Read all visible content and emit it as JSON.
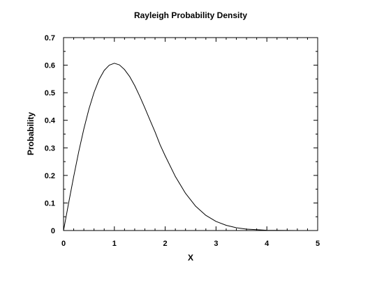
{
  "chart_data": {
    "type": "line",
    "title": "Rayleigh Probability Density",
    "xlabel": "X",
    "ylabel": "Probability",
    "xlim": [
      0,
      5
    ],
    "ylim": [
      0,
      0.7
    ],
    "x_ticks": [
      "0",
      "1",
      "2",
      "3",
      "4",
      "5"
    ],
    "y_ticks": [
      "0",
      "0.1",
      "0.2",
      "0.3",
      "0.4",
      "0.5",
      "0.6",
      "0.7"
    ],
    "grid": false,
    "series": [
      {
        "color": "#000000",
        "x": [
          0,
          0.1,
          0.2,
          0.3,
          0.4,
          0.5,
          0.6,
          0.7,
          0.8,
          0.9,
          1.0,
          1.1,
          1.2,
          1.3,
          1.4,
          1.5,
          1.6,
          1.7,
          1.8,
          1.9,
          2.0,
          2.2,
          2.4,
          2.6,
          2.8,
          3.0,
          3.2,
          3.4,
          3.6,
          3.8,
          4.0,
          4.2,
          4.4,
          4.6,
          4.8,
          5.0
        ],
        "y": [
          0,
          0.0995,
          0.196,
          0.287,
          0.369,
          0.441,
          0.501,
          0.548,
          0.581,
          0.6,
          0.607,
          0.601,
          0.584,
          0.559,
          0.526,
          0.487,
          0.445,
          0.401,
          0.358,
          0.311,
          0.271,
          0.196,
          0.135,
          0.088,
          0.055,
          0.033,
          0.019,
          0.01,
          0.005,
          0.003,
          0.001,
          0.0006,
          0.0003,
          0.0001,
          5e-05,
          0
        ]
      }
    ]
  }
}
